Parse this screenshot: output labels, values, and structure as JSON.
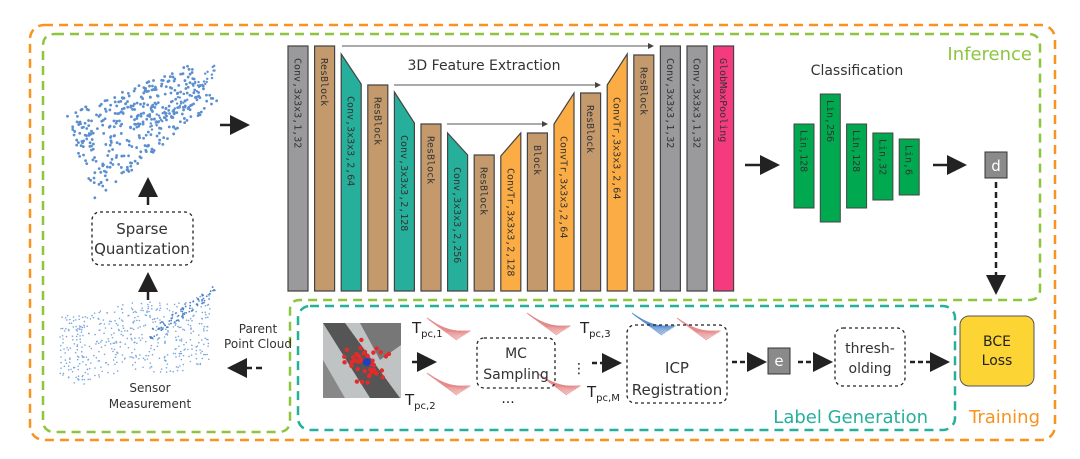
{
  "labels": {
    "inference": "Inference",
    "training": "Training",
    "label_generation": "Label Generation",
    "feature_extraction": "3D Feature Extraction",
    "classification": "Classification",
    "sparse_quantization": [
      "Sparse",
      "Quantization"
    ],
    "parent_point_cloud": [
      "Parent",
      "Point Cloud"
    ],
    "sensor_measurement": [
      "Sensor",
      "Measurement"
    ],
    "d": "d",
    "e": "e",
    "mc_sampling": [
      "MC",
      "Sampling"
    ],
    "icp_registration": [
      "ICP",
      "Registration"
    ],
    "thresholding": [
      "thresh-",
      "olding"
    ],
    "bce_loss": [
      "BCE",
      "Loss"
    ],
    "tpc1": [
      "T",
      "pc,1"
    ],
    "tpc2": [
      "T",
      "pc,2"
    ],
    "tpc3": [
      "T",
      "pc,3"
    ],
    "tpcM": [
      "T",
      "pc,M"
    ],
    "ellipsis_h": "...",
    "ellipsis_v": "⋮"
  },
  "layers": [
    {
      "label": "Conv,3x3x3,1,32",
      "type": "conv"
    },
    {
      "label": "ResBlock",
      "type": "res"
    },
    {
      "label": "Conv,3x3x3,2,64",
      "type": "down"
    },
    {
      "label": "ResBlock",
      "type": "res"
    },
    {
      "label": "Conv,3x3x3,2,128",
      "type": "down"
    },
    {
      "label": "ResBlock",
      "type": "res"
    },
    {
      "label": "Conv,3x3x3,2,256",
      "type": "down"
    },
    {
      "label": "ResBlock",
      "type": "res"
    },
    {
      "label": "ConvTr,3x3x3,2,128",
      "type": "up"
    },
    {
      "label": "Block",
      "type": "res"
    },
    {
      "label": "ConvTr,3x3x3,2,64",
      "type": "up"
    },
    {
      "label": "ResBlock",
      "type": "res"
    },
    {
      "label": "ConvTr,3x3x3,2,64",
      "type": "up"
    },
    {
      "label": "ResBlock",
      "type": "res"
    },
    {
      "label": "Conv,3x3x3,1,32",
      "type": "conv"
    },
    {
      "label": "Conv,3x3x3,1,32",
      "type": "conv"
    },
    {
      "label": "GlobMaxPooling",
      "type": "pool"
    }
  ],
  "linear_layers": [
    {
      "label": "Lin,128"
    },
    {
      "label": "Lin,256"
    },
    {
      "label": "Lin,128"
    },
    {
      "label": "Lin,32"
    },
    {
      "label": "Lin,6"
    }
  ],
  "colors": {
    "conv": "#9a9a9c",
    "res": "#c49a6c",
    "down": "#26b09b",
    "up": "#fbac45",
    "pool": "#f53b7e",
    "lin": "#00a94f",
    "inference": "#8cc63f",
    "training": "#f7931e",
    "label_gen": "#26b09b",
    "bce": "#fcd535"
  }
}
